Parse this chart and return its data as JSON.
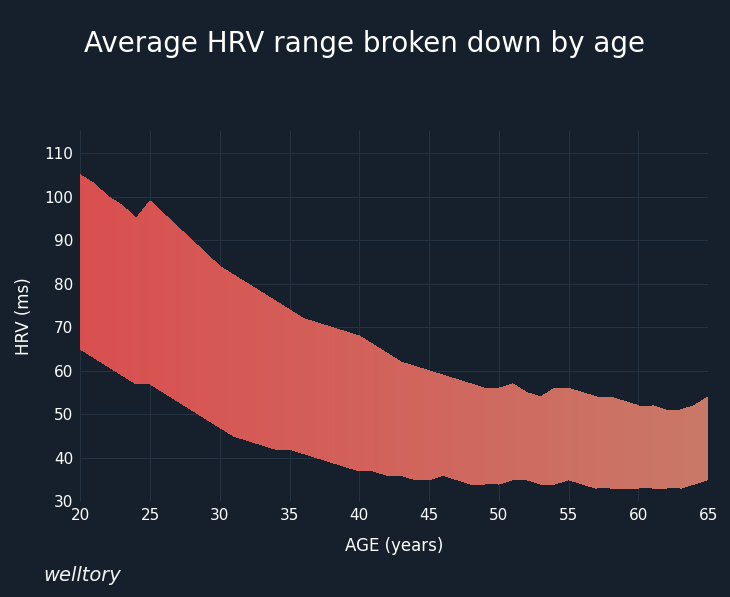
{
  "title": "Average HRV range broken down by age",
  "xlabel": "AGE (years)",
  "ylabel": "HRV (ms)",
  "watermark": "welltory",
  "bg_color": "#16202c",
  "fill_color_left": "#d94f4f",
  "fill_color_right": "#c97868",
  "grid_color": "#263342",
  "text_color": "#ffffff",
  "age": [
    20,
    21,
    22,
    23,
    24,
    25,
    26,
    27,
    28,
    29,
    30,
    31,
    32,
    33,
    34,
    35,
    36,
    37,
    38,
    39,
    40,
    41,
    42,
    43,
    44,
    45,
    46,
    47,
    48,
    49,
    50,
    51,
    52,
    53,
    54,
    55,
    56,
    57,
    58,
    59,
    60,
    61,
    62,
    63,
    64,
    65
  ],
  "upper": [
    105,
    103,
    100,
    98,
    95,
    99,
    96,
    93,
    90,
    87,
    84,
    82,
    80,
    78,
    76,
    74,
    72,
    71,
    70,
    69,
    68,
    66,
    64,
    62,
    61,
    60,
    59,
    58,
    57,
    56,
    56,
    57,
    55,
    54,
    56,
    56,
    55,
    54,
    54,
    53,
    52,
    52,
    51,
    51,
    52,
    54
  ],
  "lower": [
    65,
    63,
    61,
    59,
    57,
    57,
    55,
    53,
    51,
    49,
    47,
    45,
    44,
    43,
    42,
    42,
    41,
    40,
    39,
    38,
    37,
    37,
    36,
    36,
    35,
    35,
    36,
    35,
    34,
    34,
    34,
    35,
    35,
    34,
    34,
    35,
    34,
    33,
    33,
    33,
    33,
    33,
    33,
    33,
    34,
    35
  ],
  "ylim": [
    30,
    115
  ],
  "xlim": [
    20,
    65
  ],
  "yticks": [
    30,
    40,
    50,
    60,
    70,
    80,
    90,
    100,
    110
  ],
  "xticks": [
    20,
    25,
    30,
    35,
    40,
    45,
    50,
    55,
    60,
    65
  ],
  "title_fontsize": 20,
  "label_fontsize": 12,
  "tick_fontsize": 11,
  "watermark_fontsize": 14
}
